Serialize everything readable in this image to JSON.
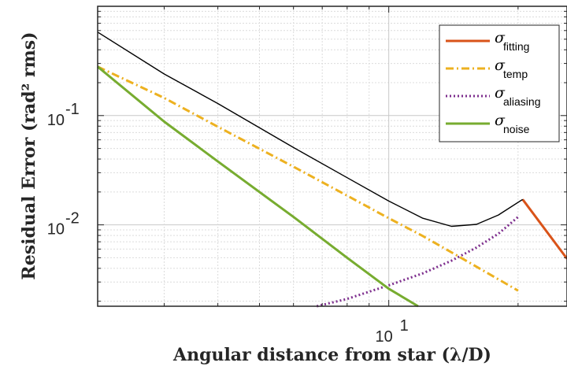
{
  "chart_data": {
    "type": "line",
    "title": "",
    "xlabel": "Angular distance from star (λ/D)",
    "ylabel": "Residual Error (rad² rms)",
    "xscale": "log",
    "yscale": "log",
    "xlim": [
      2.1,
      26
    ],
    "ylim": [
      0.0018,
      1
    ],
    "grid": true,
    "minor_grid": true,
    "legend_position": "top-right",
    "x_ticks": [
      {
        "value": 10,
        "base": "10",
        "exp": "1"
      }
    ],
    "y_ticks": [
      {
        "value": 0.1,
        "base": "10",
        "exp": "-1"
      },
      {
        "value": 0.01,
        "base": "10",
        "exp": "-2"
      }
    ],
    "series": [
      {
        "name": "σ_fitting",
        "label_main": "σ",
        "label_sub": "fitting",
        "color": "#D95319",
        "style": "solid",
        "x": [
          20.5,
          26
        ],
        "y": [
          0.0171,
          0.0049
        ]
      },
      {
        "name": "σ_temp",
        "label_main": "σ",
        "label_sub": "temp",
        "color": "#EDB120",
        "style": "dashdot",
        "x": [
          2.1,
          3.0,
          4.0,
          6.0,
          8.0,
          10.0,
          12.0,
          15.0,
          20.0
        ],
        "y": [
          0.28,
          0.145,
          0.079,
          0.034,
          0.0185,
          0.0115,
          0.0079,
          0.0048,
          0.0025
        ]
      },
      {
        "name": "σ_aliasing",
        "label_main": "σ",
        "label_sub": "aliasing",
        "color": "#7E2F8E",
        "style": "dotted",
        "x": [
          6.8,
          8.0,
          10.0,
          12.0,
          14.0,
          16.0,
          18.0,
          20.0
        ],
        "y": [
          0.0018,
          0.0021,
          0.0028,
          0.0036,
          0.0047,
          0.0062,
          0.0083,
          0.0118
        ]
      },
      {
        "name": "total",
        "color": "#000000",
        "style": "solid",
        "thin": true,
        "x": [
          2.1,
          3.0,
          4.0,
          6.0,
          8.0,
          10.0,
          12.0,
          14.0,
          16.0,
          18.0,
          20.5
        ],
        "y": [
          0.58,
          0.24,
          0.129,
          0.051,
          0.027,
          0.0165,
          0.0115,
          0.0097,
          0.0101,
          0.0123,
          0.0171
        ]
      },
      {
        "name": "σ_noise",
        "label_main": "σ",
        "label_sub": "noise",
        "color": "#77AC30",
        "style": "solid",
        "x": [
          2.1,
          3.0,
          4.0,
          6.0,
          8.0,
          10.0,
          11.7
        ],
        "y": [
          0.28,
          0.088,
          0.038,
          0.0118,
          0.005,
          0.0026,
          0.0018
        ]
      }
    ],
    "legend_order": [
      0,
      1,
      2,
      4
    ]
  }
}
